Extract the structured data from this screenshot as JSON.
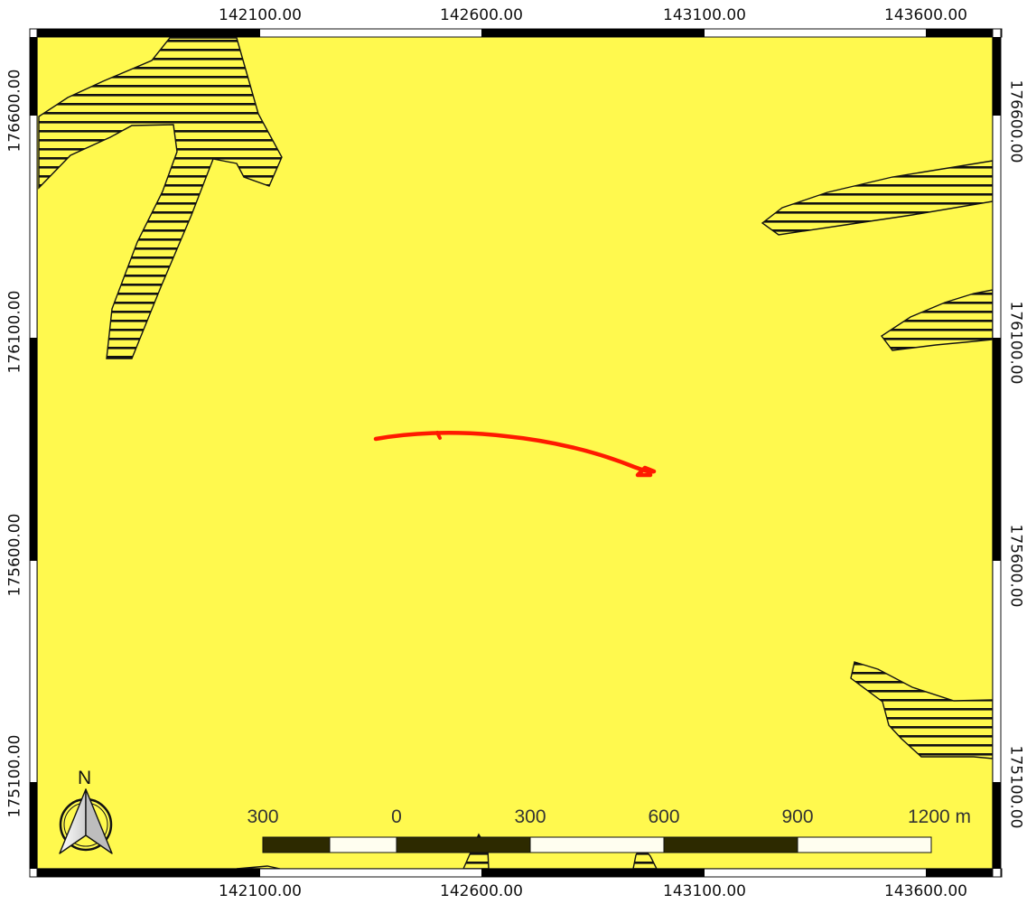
{
  "map": {
    "background_color": "#fff94e",
    "track_color": "#ff1a00",
    "hatch_color": "#111111"
  },
  "grid": {
    "x_labels": [
      "142100.00",
      "142600.00",
      "143100.00",
      "143600.00"
    ],
    "y_labels": [
      "176600.00",
      "176100.00",
      "175600.00",
      "175100.00"
    ]
  },
  "scale_bar": {
    "labels": [
      "300",
      "0",
      "300",
      "600",
      "900",
      "1200 m"
    ]
  },
  "north_arrow": {
    "letter": "N",
    "icon": "north-arrow-icon"
  }
}
